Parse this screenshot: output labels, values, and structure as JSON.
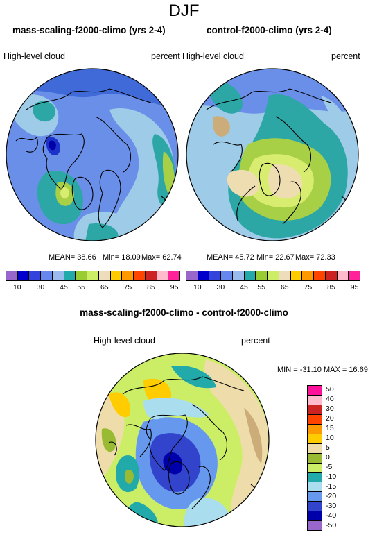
{
  "figure": {
    "title": "DJF"
  },
  "panels": [
    {
      "title": "mass-scaling-f2000-climo (yrs 2-4)",
      "variable": "High-level cloud",
      "units": "percent",
      "stats": {
        "mean": "MEAN= 38.66",
        "min": "Min= 18.09",
        "max": "Max= 62.74"
      }
    },
    {
      "title": "control-f2000-climo (yrs 2-4)",
      "variable": "High-level cloud",
      "units": "percent",
      "stats": {
        "mean": "MEAN= 45.72",
        "min": "Min= 22.67",
        "max": "Max= 72.33"
      }
    }
  ],
  "shared_colorbar": {
    "colors": [
      "#9966cc",
      "#0000cc",
      "#3344dd",
      "#6688ee",
      "#99bbee",
      "#22aaaa",
      "#99cc33",
      "#ccee66",
      "#eeddbb",
      "#ffcc00",
      "#ff9900",
      "#ff4400",
      "#cc2222",
      "#ffbbcc",
      "#ff2299"
    ],
    "tick_labels": [
      "10",
      "30",
      "45",
      "55",
      "65",
      "75",
      "85",
      "95"
    ]
  },
  "diff": {
    "title": "mass-scaling-f2000-climo - control-f2000-climo",
    "variable": "High-level cloud",
    "units": "percent",
    "minmax": "MIN = -31.10 MAX =  16.69",
    "colors": [
      "#ff1199",
      "#ffbbcc",
      "#cc2222",
      "#ff4400",
      "#ff9900",
      "#ffcc00",
      "#eeddaa",
      "#99bb33",
      "#ccee66",
      "#22aaaa",
      "#aaddee",
      "#6699ee",
      "#3344cc",
      "#0000aa",
      "#9966cc"
    ],
    "tick_labels": [
      "50",
      "40",
      "30",
      "20",
      "15",
      "10",
      "5",
      "0",
      "-5",
      "-10",
      "-15",
      "-20",
      "-30",
      "-40",
      "-50"
    ]
  }
}
